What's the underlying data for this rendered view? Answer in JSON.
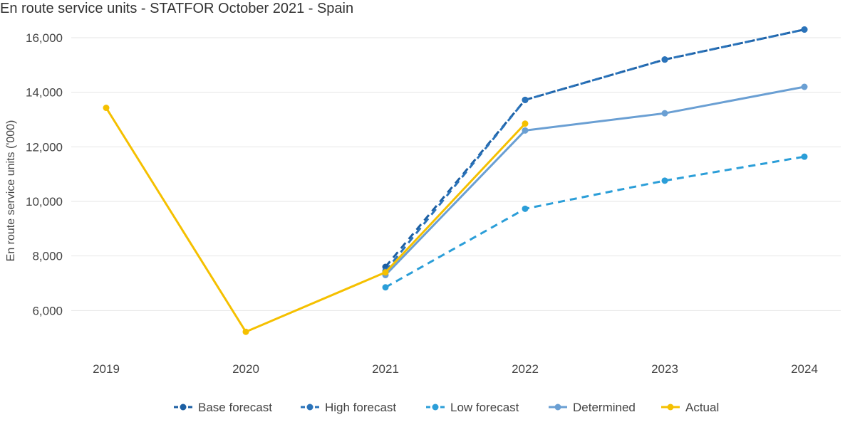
{
  "chart_data": {
    "type": "line",
    "title": "En route service units - STATFOR October 2021 - Spain",
    "ylabel": "En route service units ('000)",
    "xlabel": "",
    "ylim": [
      4600,
      16600
    ],
    "yticks": [
      6000,
      8000,
      10000,
      12000,
      14000,
      16000
    ],
    "ytick_labels": [
      "6,000",
      "8,000",
      "10,000",
      "12,000",
      "14,000",
      "16,000"
    ],
    "x": [
      "2019",
      "2020",
      "2021",
      "2022",
      "2023",
      "2024"
    ],
    "grid": true,
    "legend_position": "bottom-center",
    "series": [
      {
        "name": "Base forecast",
        "color": "#1c5fa3",
        "dashed": true,
        "values": [
          null,
          null,
          7600,
          13720,
          15200,
          16300
        ]
      },
      {
        "name": "High forecast",
        "color": "#2a73ba",
        "dashed": true,
        "values": [
          null,
          null,
          7450,
          13720,
          15200,
          16300
        ]
      },
      {
        "name": "Low forecast",
        "color": "#2b9ed8",
        "dashed": true,
        "values": [
          null,
          null,
          6850,
          9730,
          10760,
          11640
        ]
      },
      {
        "name": "Determined",
        "color": "#6a9fd3",
        "dashed": false,
        "values": [
          null,
          null,
          7300,
          12600,
          13230,
          14200
        ]
      },
      {
        "name": "Actual",
        "color": "#f5c000",
        "dashed": false,
        "values": [
          13430,
          5220,
          7400,
          12850,
          null,
          null
        ]
      }
    ]
  }
}
